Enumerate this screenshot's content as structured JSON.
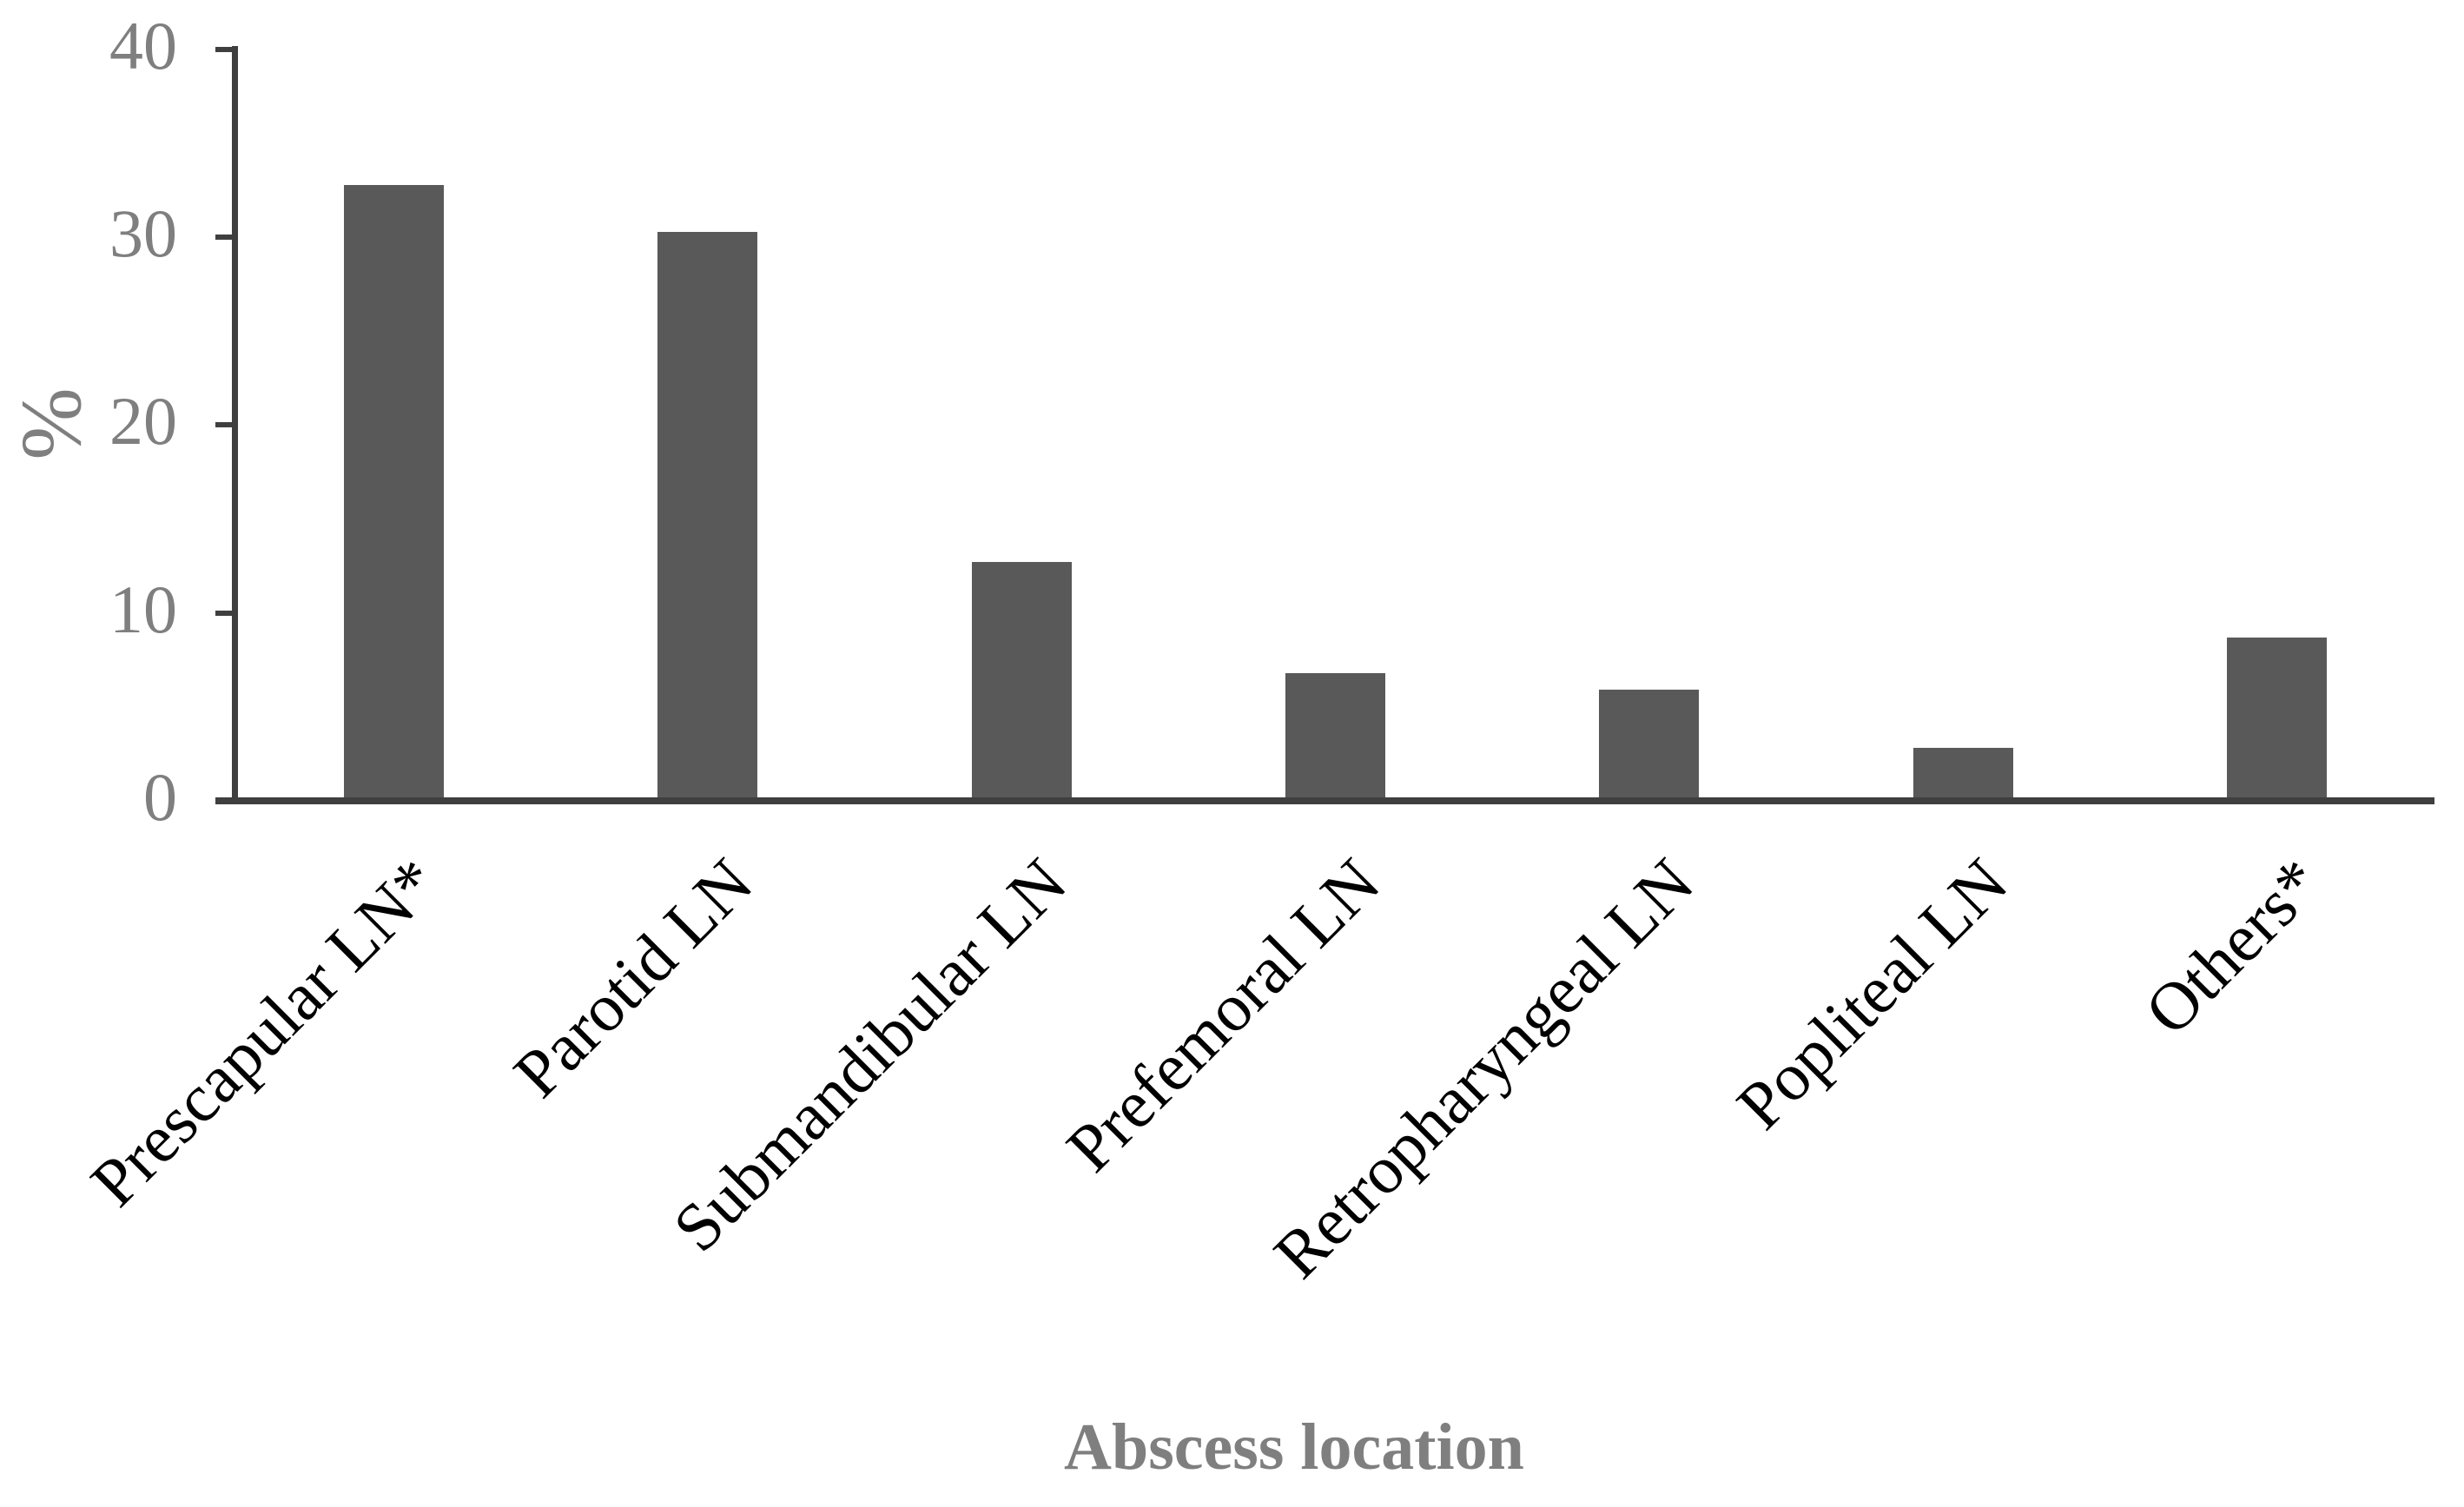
{
  "chart_data": {
    "type": "bar",
    "categories": [
      "Prescapular LN*",
      "Parotid LN",
      "Submandibular LN",
      "Prefemoral LN",
      "Retropharyngeal LN",
      "Popliteal LN",
      "Others*"
    ],
    "values": [
      32.8,
      30.3,
      12.7,
      6.8,
      5.9,
      2.8,
      8.7
    ],
    "title": "",
    "xlabel": "Abscess location",
    "ylabel": "%",
    "ylim": [
      0,
      40
    ],
    "yticks": [
      0,
      10,
      20,
      30,
      40
    ],
    "grid": false,
    "legend": false,
    "category_label_rotation_deg": -45,
    "colors": {
      "bar": "#595959",
      "axis": "#3f3f3f",
      "tick_label": "#7f7f7f",
      "category_label": "#000000",
      "axis_title": "#7f7f7f",
      "background": "#ffffff"
    }
  }
}
